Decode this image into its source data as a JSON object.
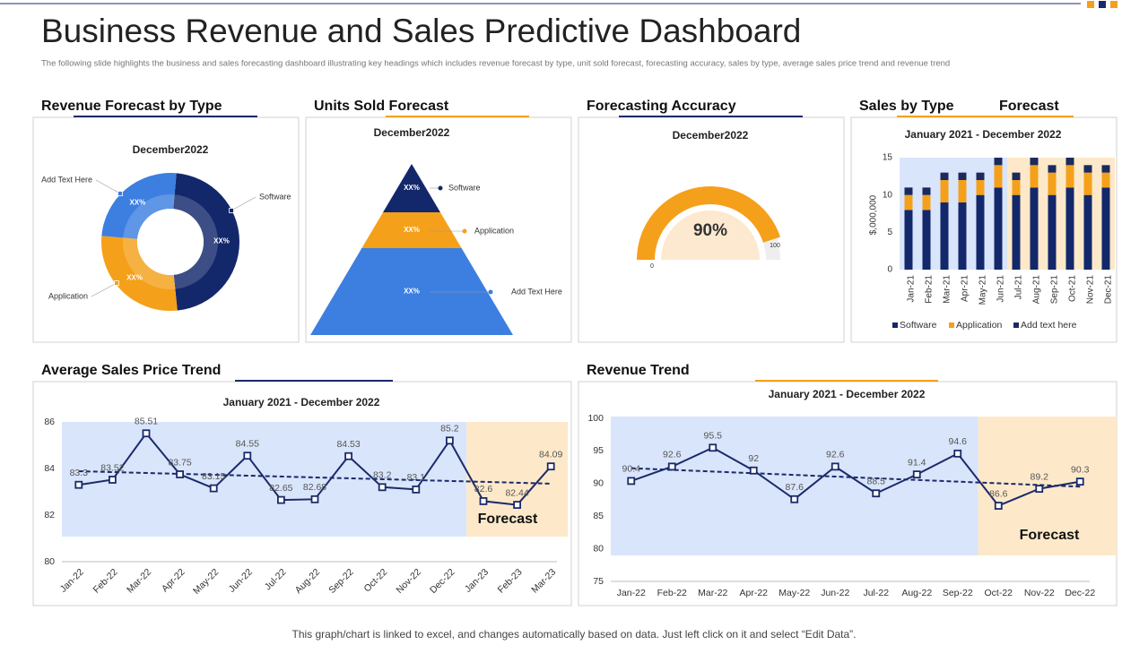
{
  "header": {
    "title": "Business Revenue and Sales Predictive Dashboard",
    "subtitle": "The following slide highlights the business and sales forecasting dashboard illustrating key headings which includes revenue forecast by type, unit sold forecast, forecasting accuracy, sales by type, average sales price trend and revenue trend"
  },
  "chart_data": [
    {
      "type": "donut",
      "title": "Revenue Forecast by Type",
      "subtitle": "December2022",
      "categories": [
        "Software",
        "Application",
        "Add Text Here"
      ],
      "values": [
        47,
        28,
        25
      ],
      "slice_labels": [
        "XX%",
        "XX%",
        "XX%"
      ],
      "colors": [
        "#13276b",
        "#f5a01a",
        "#3c7fe0"
      ]
    },
    {
      "type": "pyramid",
      "title": "Units Sold Forecast",
      "subtitle": "December2022",
      "categories": [
        "Software",
        "Application",
        "Add Text Here"
      ],
      "slice_labels": [
        "XX%",
        "XX%",
        "XX%"
      ],
      "colors": [
        "#13276b",
        "#f5a01a",
        "#3c7fe0"
      ]
    },
    {
      "type": "gauge",
      "title": "Forecasting Accuracy",
      "subtitle": "December2022",
      "value": 90,
      "value_label": "90%",
      "ylim": [
        0,
        100
      ],
      "color": "#f5a01a"
    },
    {
      "type": "bar",
      "stacked": true,
      "title": "Sales by Type",
      "annotation": "Forecast",
      "subtitle": "January 2021 - December 2022",
      "ylabel": "$,000,000",
      "categories": [
        "Jan-21",
        "Feb-21",
        "Mar-21",
        "Apr-21",
        "May-21",
        "Jun-21",
        "Jul-21",
        "Aug-21",
        "Sep-21",
        "Oct-21",
        "Nov-21",
        "Dec-21"
      ],
      "series": [
        {
          "name": "Software",
          "color": "#13276b",
          "values": [
            8,
            8,
            9,
            9,
            10,
            11,
            10,
            11,
            10,
            11,
            10,
            11
          ]
        },
        {
          "name": "Application",
          "color": "#f5a01a",
          "values": [
            2,
            2,
            3,
            3,
            2,
            3,
            2,
            3,
            3,
            3,
            3,
            2
          ]
        },
        {
          "name": "Add text here",
          "color": "#1b2a5e",
          "values": [
            1,
            1,
            1,
            1,
            1,
            1,
            1,
            1,
            1,
            1,
            1,
            1
          ]
        }
      ],
      "ylim": [
        0,
        15
      ],
      "yticks": [
        0,
        5,
        10,
        15
      ],
      "forecast_from": "Jul-21"
    },
    {
      "type": "line",
      "title": "Average Sales Price Trend",
      "subtitle": "January 2021 - December 2022",
      "annotation": "Forecast",
      "categories": [
        "Jan-22",
        "Feb-22",
        "Mar-22",
        "Apr-22",
        "May-22",
        "Jun-22",
        "Jul-22",
        "Aug-22",
        "Sep-22",
        "Oct-22",
        "Nov-22",
        "Dec-22",
        "Jan-23",
        "Feb-23",
        "Mar-23"
      ],
      "values": [
        83.3,
        83.52,
        85.51,
        83.75,
        83.15,
        84.55,
        82.65,
        82.68,
        84.53,
        83.2,
        83.1,
        85.2,
        82.6,
        82.44,
        84.09
      ],
      "color": "#1b2a6b",
      "ylim": [
        80,
        86
      ],
      "yticks": [
        80,
        82,
        84,
        86
      ],
      "trendline": true,
      "forecast_from": "Jan-23"
    },
    {
      "type": "line",
      "title": "Revenue Trend",
      "subtitle": "January 2021 - December 2022",
      "annotation": "Forecast",
      "categories": [
        "Jan-22",
        "Feb-22",
        "Mar-22",
        "Apr-22",
        "May-22",
        "Jun-22",
        "Jul-22",
        "Aug-22",
        "Sep-22",
        "Oct-22",
        "Nov-22",
        "Dec-22"
      ],
      "values": [
        90.4,
        92.6,
        95.5,
        92,
        87.6,
        92.6,
        88.5,
        91.4,
        94.6,
        86.6,
        89.2,
        90.3
      ],
      "color": "#1b2a6b",
      "ylim": [
        75,
        100
      ],
      "yticks": [
        75,
        80,
        85,
        90,
        95,
        100
      ],
      "trendline": true,
      "forecast_from": "Oct-22"
    }
  ],
  "footer": "This graph/chart is linked to excel, and changes automatically based on data. Just left click on it and select “Edit Data”."
}
